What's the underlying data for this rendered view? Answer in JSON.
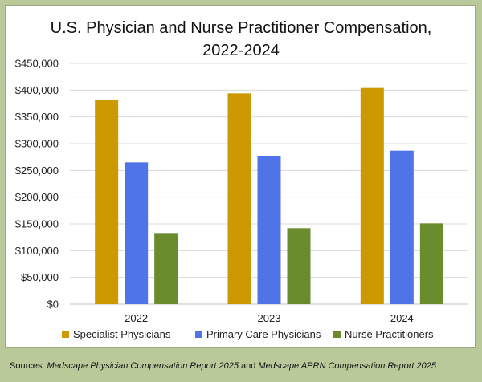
{
  "chart_data": {
    "type": "bar",
    "title_line1": "U.S. Physician and Nurse Practitioner Compensation,",
    "title_line2": "2022-2024",
    "categories": [
      "2022",
      "2023",
      "2024"
    ],
    "series": [
      {
        "name": "Specialist Physicians",
        "values": [
          382000,
          394000,
          404000
        ],
        "color": "#cc9900"
      },
      {
        "name": "Primary Care Physicians",
        "values": [
          265000,
          277000,
          287000
        ],
        "color": "#4f74e8"
      },
      {
        "name": "Nurse Practitioners",
        "values": [
          133000,
          142000,
          151000
        ],
        "color": "#6a8c2c"
      }
    ],
    "ylim": [
      0,
      450000
    ],
    "yticks": [
      0,
      50000,
      100000,
      150000,
      200000,
      250000,
      300000,
      350000,
      400000,
      450000
    ],
    "ytick_labels": [
      "$0",
      "$50,000",
      "$100,000",
      "$150,000",
      "$200,000",
      "$250,000",
      "$300,000",
      "$350,000",
      "$400,000",
      "$450,000"
    ],
    "grid": true,
    "legend_position": "bottom"
  },
  "source": {
    "prefix": "Sources: ",
    "report1": "Medscape Physician Compensation Report 2025",
    "joiner": " and ",
    "report2": "Medscape APRN Compensation Report 2025"
  }
}
